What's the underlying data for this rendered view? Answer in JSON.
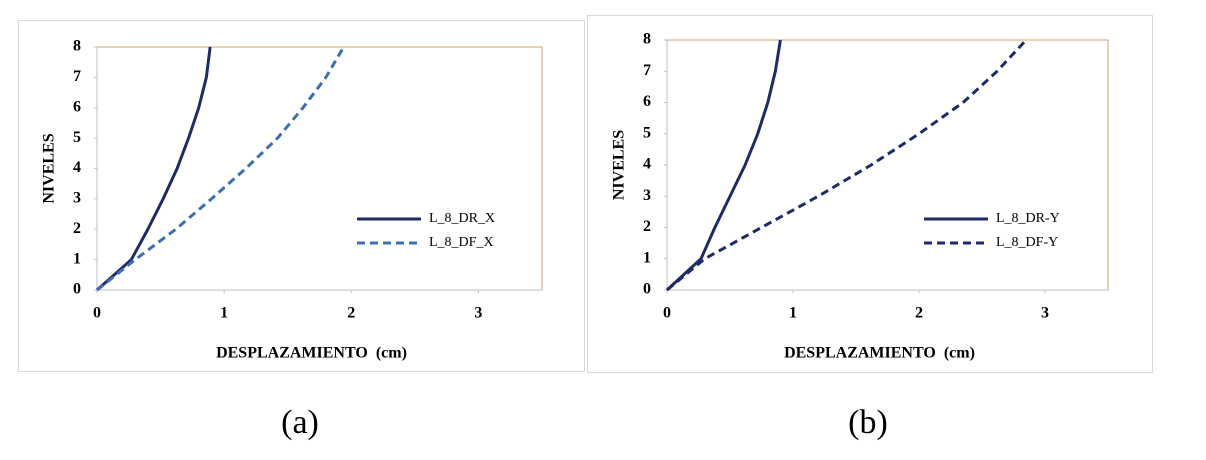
{
  "chart_data": [
    {
      "type": "line",
      "caption": "(a)",
      "x_label": "DESPLAZAMIENTO  (cm)",
      "y_label": "NIVELES",
      "xlim": [
        0,
        3.5
      ],
      "ylim": [
        0,
        8
      ],
      "xticks": [
        0,
        1,
        2,
        3
      ],
      "yticks": [
        0,
        1,
        2,
        3,
        4,
        5,
        6,
        7,
        8
      ],
      "series": [
        {
          "name": "L_8_DR_X",
          "color": "#1f2a6b",
          "dashed": false,
          "x": [
            0,
            0.27,
            0.4,
            0.52,
            0.63,
            0.72,
            0.8,
            0.86,
            0.89
          ],
          "values": [
            0,
            1,
            2,
            3,
            4,
            5,
            6,
            7,
            8
          ]
        },
        {
          "name": "L_8_DF_X",
          "color": "#3a6fb5",
          "dashed": true,
          "x": [
            0,
            0.3,
            0.62,
            0.9,
            1.17,
            1.42,
            1.62,
            1.8,
            1.94
          ],
          "values": [
            0,
            1,
            2,
            3,
            4,
            5,
            6,
            7,
            8
          ]
        }
      ]
    },
    {
      "type": "line",
      "caption": "(b)",
      "x_label": "DESPLAZAMIENTO  (cm)",
      "y_label": "NIVELES",
      "xlim": [
        0,
        3.5
      ],
      "ylim": [
        0,
        8
      ],
      "xticks": [
        0,
        1,
        2,
        3
      ],
      "yticks": [
        0,
        1,
        2,
        3,
        4,
        5,
        6,
        7,
        8
      ],
      "series": [
        {
          "name": "L_8_DR-Y",
          "color": "#1f2a6b",
          "dashed": false,
          "x": [
            0,
            0.27,
            0.38,
            0.5,
            0.62,
            0.72,
            0.8,
            0.86,
            0.9
          ],
          "values": [
            0,
            1,
            2,
            3,
            4,
            5,
            6,
            7,
            8
          ]
        },
        {
          "name": "L_8_DF-Y",
          "color": "#1f2a6b",
          "dashed": true,
          "x": [
            0,
            0.3,
            0.75,
            1.2,
            1.62,
            2.0,
            2.35,
            2.62,
            2.85
          ],
          "values": [
            0,
            1,
            2,
            3,
            4,
            5,
            6,
            7,
            8
          ]
        }
      ]
    }
  ]
}
